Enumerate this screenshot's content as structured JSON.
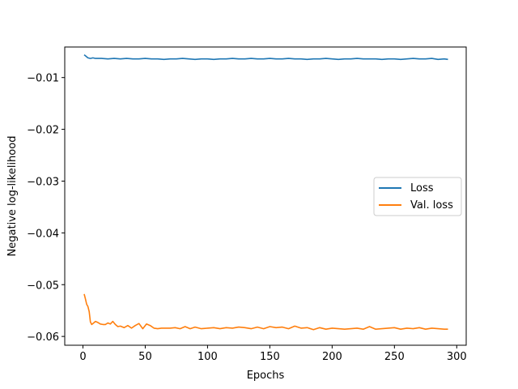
{
  "chart_data": {
    "type": "line",
    "xlabel": "Epochs",
    "ylabel": "Negative log-likelihood",
    "xlim": [
      -14.6,
      307.6
    ],
    "ylim": [
      -0.0617,
      -0.0041
    ],
    "xticks": [
      0,
      50,
      100,
      150,
      200,
      250,
      300
    ],
    "yticks": [
      -0.06,
      -0.05,
      -0.04,
      -0.03,
      -0.02,
      -0.01
    ],
    "ytick_labels": [
      "−0.06",
      "−0.05",
      "−0.04",
      "−0.03",
      "−0.02",
      "−0.01"
    ],
    "grid": false,
    "legend_position": "center-right",
    "series": [
      {
        "name": "Loss",
        "color": "#1f77b4",
        "x": [
          1,
          2,
          4,
          6,
          8,
          10,
          15,
          20,
          25,
          30,
          35,
          40,
          45,
          50,
          55,
          60,
          65,
          70,
          75,
          80,
          85,
          90,
          95,
          100,
          105,
          110,
          115,
          120,
          125,
          130,
          135,
          140,
          145,
          150,
          155,
          160,
          165,
          170,
          175,
          180,
          185,
          190,
          195,
          200,
          205,
          210,
          215,
          220,
          225,
          230,
          235,
          240,
          245,
          250,
          255,
          260,
          265,
          270,
          275,
          280,
          285,
          290,
          293
        ],
        "y": [
          -0.0056,
          -0.0058,
          -0.0062,
          -0.0063,
          -0.0062,
          -0.0063,
          -0.0063,
          -0.0064,
          -0.0063,
          -0.0064,
          -0.0063,
          -0.0064,
          -0.0064,
          -0.0063,
          -0.0064,
          -0.0064,
          -0.0065,
          -0.0064,
          -0.0064,
          -0.0063,
          -0.0064,
          -0.0065,
          -0.0064,
          -0.0064,
          -0.0065,
          -0.0064,
          -0.0064,
          -0.0063,
          -0.0064,
          -0.0064,
          -0.0063,
          -0.0064,
          -0.0064,
          -0.0063,
          -0.0064,
          -0.0064,
          -0.0063,
          -0.0064,
          -0.0064,
          -0.0065,
          -0.0064,
          -0.0064,
          -0.0063,
          -0.0064,
          -0.0065,
          -0.0064,
          -0.0064,
          -0.0063,
          -0.0064,
          -0.0064,
          -0.0064,
          -0.0065,
          -0.0064,
          -0.0064,
          -0.0065,
          -0.0064,
          -0.0063,
          -0.0064,
          -0.0064,
          -0.0063,
          -0.0065,
          -0.0064,
          -0.0065
        ]
      },
      {
        "name": "Val. loss",
        "color": "#ff7f0e",
        "x": [
          1,
          2,
          3,
          4,
          5,
          6,
          7,
          8,
          10,
          12,
          14,
          16,
          18,
          20,
          22,
          24,
          26,
          28,
          30,
          33,
          36,
          39,
          42,
          45,
          48,
          51,
          54,
          57,
          60,
          63,
          66,
          70,
          74,
          78,
          82,
          86,
          90,
          95,
          100,
          105,
          110,
          115,
          120,
          125,
          130,
          135,
          140,
          145,
          150,
          155,
          160,
          165,
          170,
          175,
          180,
          185,
          190,
          195,
          200,
          205,
          210,
          215,
          220,
          225,
          230,
          235,
          240,
          245,
          250,
          255,
          260,
          265,
          270,
          275,
          280,
          285,
          290,
          293
        ],
        "y": [
          -0.0518,
          -0.0528,
          -0.0538,
          -0.0542,
          -0.0552,
          -0.0572,
          -0.0577,
          -0.0575,
          -0.0571,
          -0.0573,
          -0.0576,
          -0.0577,
          -0.0577,
          -0.0574,
          -0.0576,
          -0.0571,
          -0.0577,
          -0.0581,
          -0.058,
          -0.0583,
          -0.0579,
          -0.0584,
          -0.0579,
          -0.0575,
          -0.0585,
          -0.0576,
          -0.0579,
          -0.0584,
          -0.0585,
          -0.0584,
          -0.0584,
          -0.0584,
          -0.0583,
          -0.0585,
          -0.0581,
          -0.0585,
          -0.0582,
          -0.0585,
          -0.0584,
          -0.0583,
          -0.0585,
          -0.0583,
          -0.0584,
          -0.0582,
          -0.0583,
          -0.0585,
          -0.0582,
          -0.0585,
          -0.0581,
          -0.0583,
          -0.0582,
          -0.0585,
          -0.058,
          -0.0584,
          -0.0583,
          -0.0587,
          -0.0583,
          -0.0586,
          -0.0584,
          -0.0585,
          -0.0586,
          -0.0585,
          -0.0584,
          -0.0586,
          -0.0581,
          -0.0586,
          -0.0585,
          -0.0584,
          -0.0583,
          -0.0586,
          -0.0584,
          -0.0585,
          -0.0583,
          -0.0586,
          -0.0584,
          -0.0585,
          -0.0586,
          -0.0586
        ]
      }
    ]
  }
}
